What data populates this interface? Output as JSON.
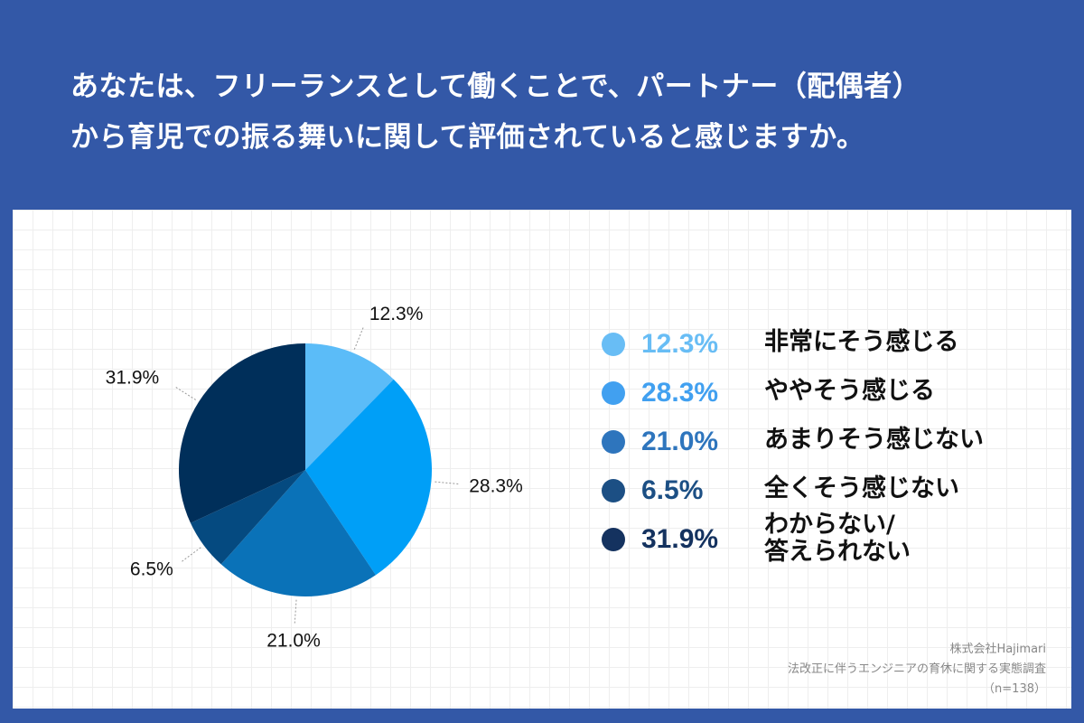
{
  "title": {
    "line1": "あなたは、フリーランスとして働くことで、パートナー（配偶者）",
    "line2": "から育児での振る舞いに関して評価されていると感じますか。"
  },
  "chart_data": {
    "type": "pie",
    "title": "あなたは、フリーランスとして働くことで、パートナー（配偶者）から育児での振る舞いに関して評価されていると感じますか。",
    "slices": [
      {
        "label": "非常にそう感じる",
        "value": 12.3,
        "text": "12.3%",
        "color": "#5bbcf8"
      },
      {
        "label": "ややそう感じる",
        "value": 28.3,
        "text": "28.3%",
        "color": "#009ff7"
      },
      {
        "label": "あまりそう感じない",
        "value": 21.0,
        "text": "21.0%",
        "color": "#0a72b8"
      },
      {
        "label": "全くそう感じない",
        "value": 6.5,
        "text": "6.5%",
        "color": "#054a80"
      },
      {
        "label": "わからない/答えられない",
        "value": 31.9,
        "text": "31.9%",
        "color": "#002f5a"
      }
    ]
  },
  "legend": [
    {
      "pct": "12.3%",
      "label": "非常にそう感じる",
      "color": "#68bdf5"
    },
    {
      "pct": "28.3%",
      "label": "ややそう感じる",
      "color": "#41a0f0"
    },
    {
      "pct": "21.0%",
      "label": "あまりそう感じない",
      "color": "#2e75bd"
    },
    {
      "pct": "6.5%",
      "label": "全くそう感じない",
      "color": "#1c4f84"
    },
    {
      "pct": "31.9%",
      "label_line1": "わからない/",
      "label_line2": "答えられない",
      "color": "#14325f"
    }
  ],
  "source": {
    "company": "株式会社Hajimari",
    "survey": "法改正に伴うエンジニアの育休に関する実態調査",
    "n": "（n=138）"
  }
}
